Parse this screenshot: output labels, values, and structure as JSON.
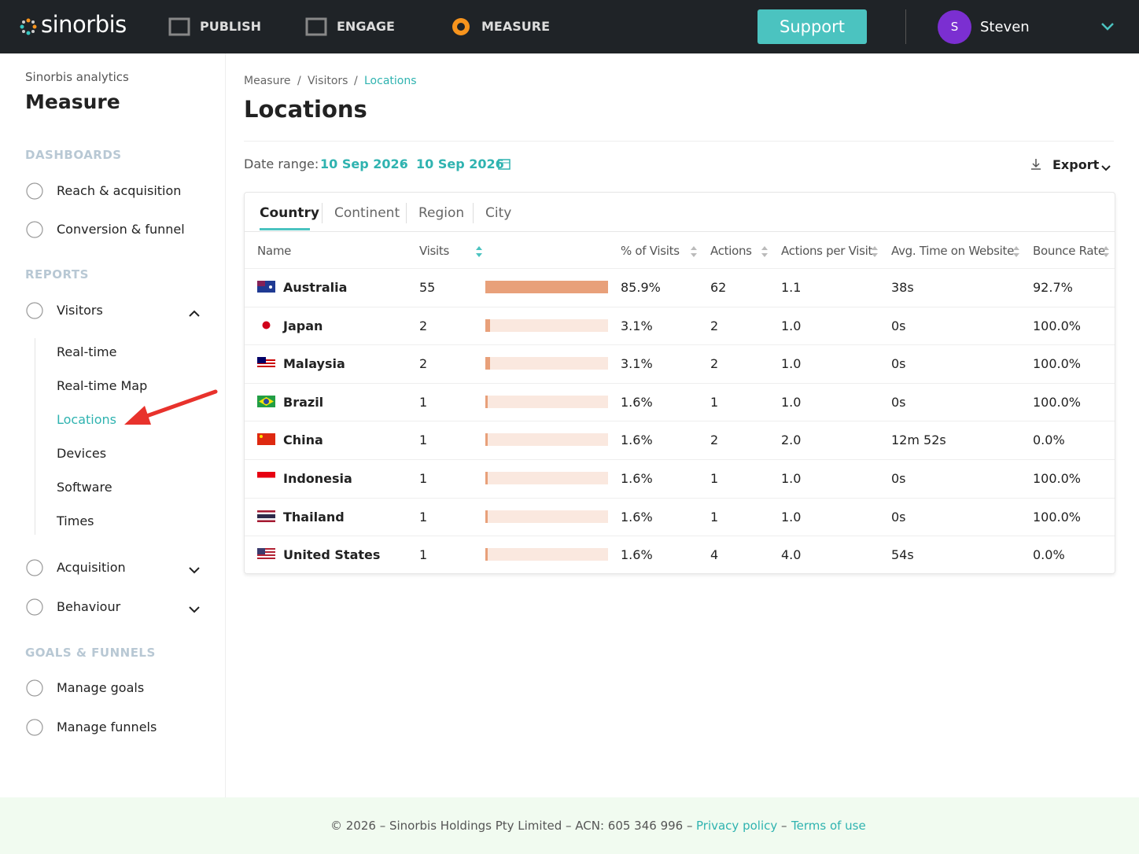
{
  "nav": {
    "logo": "sinorbis",
    "items": [
      "PUBLISH",
      "ENGAGE",
      "MEASURE"
    ],
    "support": "Support",
    "avatar": "S",
    "user": "Steven"
  },
  "sidebar": {
    "subtitle": "Sinorbis analytics",
    "title": "Measure",
    "dashboards": {
      "heading": "DASHBOARDS",
      "items": [
        "Reach & acquisition",
        "Conversion & funnel"
      ]
    },
    "reports": {
      "heading": "REPORTS",
      "visitors": "Visitors",
      "visitor_items": [
        "Real-time",
        "Real-time Map",
        "Locations",
        "Devices",
        "Software",
        "Times"
      ],
      "acquisition": "Acquisition",
      "behaviour": "Behaviour"
    },
    "goals": {
      "heading": "GOALS & FUNNELS",
      "items": [
        "Manage goals",
        "Manage funnels"
      ]
    }
  },
  "main": {
    "breadcrumb": [
      "Measure",
      "Visitors",
      "Locations"
    ],
    "breadcrumb_separator": "/",
    "title": "Locations",
    "date_range": {
      "label": "Date range:",
      "start": "10 Sep 2026",
      "separator": "-",
      "end": "10 Sep 2026"
    },
    "export": "Export",
    "tabs": [
      "Country",
      "Continent",
      "Region",
      "City"
    ],
    "table": {
      "columns": [
        "Name",
        "Visits",
        "% of Visits",
        "Actions",
        "Actions per Visit",
        "Avg. Time on Website",
        "Bounce Rate"
      ],
      "rows": [
        [
          "Australia",
          55,
          "85.9%",
          62,
          "1.1",
          "38s",
          "92.7%"
        ],
        [
          "Japan",
          2,
          "3.1%",
          2,
          "1.0",
          "0s",
          "100.0%"
        ],
        [
          "Malaysia",
          2,
          "3.1%",
          2,
          "1.0",
          "0s",
          "100.0%"
        ],
        [
          "Brazil",
          1,
          "1.6%",
          1,
          "1.0",
          "0s",
          "100.0%"
        ],
        [
          "China",
          1,
          "1.6%",
          2,
          "2.0",
          "12m 52s",
          "0.0%"
        ],
        [
          "Indonesia",
          1,
          "1.6%",
          1,
          "1.0",
          "0s",
          "100.0%"
        ],
        [
          "Thailand",
          1,
          "1.6%",
          1,
          "1.0",
          "0s",
          "100.0%"
        ],
        [
          "United States",
          1,
          "1.6%",
          4,
          "4.0",
          "54s",
          "0.0%"
        ]
      ]
    }
  },
  "footer": {
    "text": "© 2026 – Sinorbis Holdings Pty Limited – ACN: 605 346 996 –",
    "privacy": "Privacy policy",
    "dash": "–",
    "terms": "Terms of use"
  }
}
